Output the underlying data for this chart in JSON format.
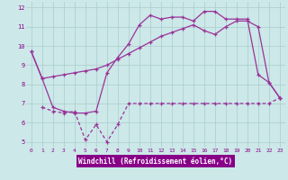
{
  "xlabel": "Windchill (Refroidissement éolien,°C)",
  "bg_color": "#cce8e8",
  "line_color": "#993399",
  "grid_color": "#aacccc",
  "xlim_min": -0.5,
  "xlim_max": 23.5,
  "ylim_min": 4.7,
  "ylim_max": 12.3,
  "xticks": [
    0,
    1,
    2,
    3,
    4,
    5,
    6,
    7,
    8,
    9,
    10,
    11,
    12,
    13,
    14,
    15,
    16,
    17,
    18,
    19,
    20,
    21,
    22,
    23
  ],
  "yticks": [
    5,
    6,
    7,
    8,
    9,
    10,
    11,
    12
  ],
  "line1_x": [
    0,
    1,
    2,
    3,
    4,
    5,
    6,
    7,
    8,
    9,
    10,
    11,
    12,
    13,
    14,
    15,
    16,
    17,
    18,
    19,
    20,
    21,
    22,
    23
  ],
  "line1_y": [
    9.7,
    8.3,
    8.4,
    8.5,
    8.6,
    8.7,
    8.8,
    9.0,
    9.3,
    9.6,
    9.9,
    10.2,
    10.5,
    10.7,
    10.9,
    11.1,
    10.8,
    10.6,
    11.0,
    11.3,
    11.3,
    11.0,
    8.1,
    7.3
  ],
  "line2_x": [
    1,
    2,
    3,
    4,
    5,
    6,
    7,
    8,
    9,
    10,
    11,
    12,
    13,
    14,
    15,
    16,
    17,
    18,
    19,
    20,
    21,
    22,
    23
  ],
  "line2_y": [
    6.8,
    6.6,
    6.5,
    6.6,
    5.1,
    5.9,
    5.0,
    5.9,
    7.0,
    7.0,
    7.0,
    7.0,
    7.0,
    7.0,
    7.0,
    7.0,
    7.0,
    7.0,
    7.0,
    7.0,
    7.0,
    7.0,
    7.3
  ],
  "line3_x": [
    0,
    1,
    2,
    3,
    4,
    5,
    6,
    7,
    8,
    9,
    10,
    11,
    12,
    13,
    14,
    15,
    16,
    17,
    18,
    19,
    20,
    21,
    22,
    23
  ],
  "line3_y": [
    9.7,
    8.3,
    6.8,
    6.6,
    6.5,
    6.5,
    6.6,
    8.6,
    9.4,
    10.1,
    11.1,
    11.6,
    11.4,
    11.5,
    11.5,
    11.3,
    11.8,
    11.8,
    11.4,
    11.4,
    11.4,
    8.5,
    8.1,
    7.3
  ],
  "xlabel_bg": "#880088",
  "xlabel_fg": "#ffffff",
  "tick_color": "#880088",
  "tick_fontsize": 4.5,
  "ylabel_fontsize": 5.5
}
